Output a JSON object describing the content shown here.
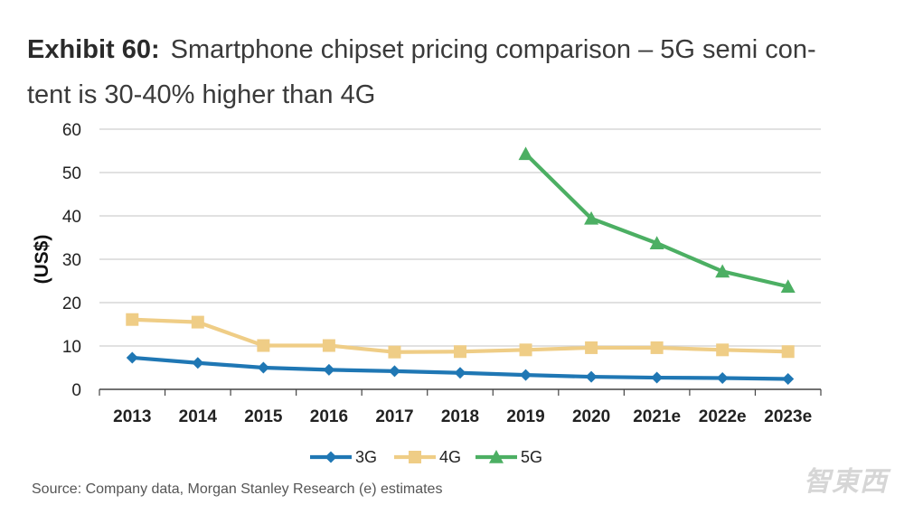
{
  "header": {
    "exhibit_label": "Exhibit 60:",
    "title_text": "Smartphone chipset pricing comparison – 5G semi con-tent is 30-40% higher than 4G"
  },
  "source_note": "Source: Company data, Morgan Stanley Research (e) estimates",
  "watermark": "智東西",
  "chart_data": {
    "type": "line",
    "title": "Smartphone chipset pricing comparison – 5G semi con-tent is 30-40% higher than 4G",
    "xlabel": "",
    "ylabel": "(US$)",
    "ylim": [
      0,
      60
    ],
    "yticks": [
      0,
      10,
      20,
      30,
      40,
      50,
      60
    ],
    "grid": true,
    "legend": "bottom-center",
    "categories": [
      "2013",
      "2014",
      "2015",
      "2016",
      "2017",
      "2018",
      "2019",
      "2020",
      "2021e",
      "2022e",
      "2023e"
    ],
    "series": [
      {
        "name": "3G",
        "color": "#1f77b4",
        "marker": "diamond",
        "values": [
          7.3,
          6.1,
          5.0,
          4.5,
          4.2,
          3.8,
          3.3,
          2.9,
          2.7,
          2.6,
          2.4
        ]
      },
      {
        "name": "4G",
        "color": "#efcd86",
        "marker": "square",
        "values": [
          16.1,
          15.5,
          10.1,
          10.1,
          8.6,
          8.7,
          9.1,
          9.6,
          9.6,
          9.1,
          8.7
        ]
      },
      {
        "name": "5G",
        "color": "#4caf63",
        "marker": "triangle",
        "values": [
          null,
          null,
          null,
          null,
          null,
          null,
          54.3,
          39.4,
          33.7,
          27.2,
          23.7
        ]
      }
    ]
  }
}
